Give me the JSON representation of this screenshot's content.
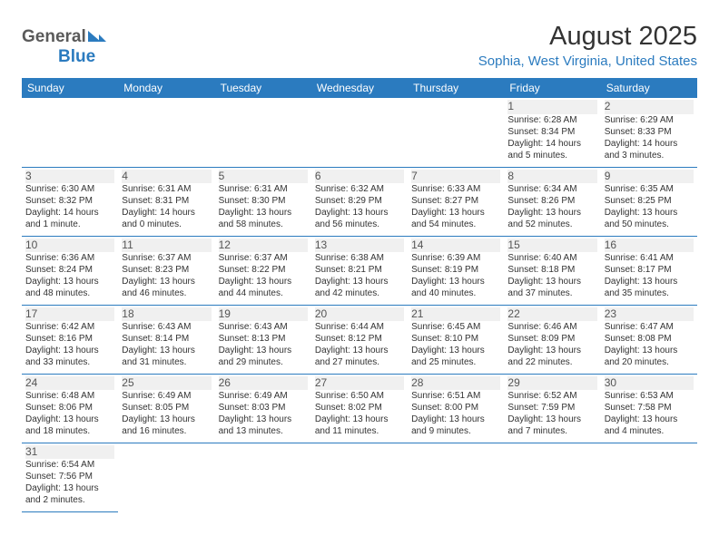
{
  "logo": {
    "part1": "General",
    "part2": "Blue"
  },
  "title": "August 2025",
  "location": "Sophia, West Virginia, United States",
  "colors": {
    "header_bg": "#2b7bbf",
    "header_text": "#ffffff",
    "rule": "#2b7bbf",
    "shade": "#f0f0f0",
    "text": "#333333",
    "logo_gray": "#5a5a5a",
    "logo_blue": "#2b7bbf"
  },
  "day_headers": [
    "Sunday",
    "Monday",
    "Tuesday",
    "Wednesday",
    "Thursday",
    "Friday",
    "Saturday"
  ],
  "weeks": [
    [
      null,
      null,
      null,
      null,
      null,
      {
        "n": "1",
        "sr": "Sunrise: 6:28 AM",
        "ss": "Sunset: 8:34 PM",
        "dl": "Daylight: 14 hours and 5 minutes."
      },
      {
        "n": "2",
        "sr": "Sunrise: 6:29 AM",
        "ss": "Sunset: 8:33 PM",
        "dl": "Daylight: 14 hours and 3 minutes."
      }
    ],
    [
      {
        "n": "3",
        "sr": "Sunrise: 6:30 AM",
        "ss": "Sunset: 8:32 PM",
        "dl": "Daylight: 14 hours and 1 minute."
      },
      {
        "n": "4",
        "sr": "Sunrise: 6:31 AM",
        "ss": "Sunset: 8:31 PM",
        "dl": "Daylight: 14 hours and 0 minutes."
      },
      {
        "n": "5",
        "sr": "Sunrise: 6:31 AM",
        "ss": "Sunset: 8:30 PM",
        "dl": "Daylight: 13 hours and 58 minutes."
      },
      {
        "n": "6",
        "sr": "Sunrise: 6:32 AM",
        "ss": "Sunset: 8:29 PM",
        "dl": "Daylight: 13 hours and 56 minutes."
      },
      {
        "n": "7",
        "sr": "Sunrise: 6:33 AM",
        "ss": "Sunset: 8:27 PM",
        "dl": "Daylight: 13 hours and 54 minutes."
      },
      {
        "n": "8",
        "sr": "Sunrise: 6:34 AM",
        "ss": "Sunset: 8:26 PM",
        "dl": "Daylight: 13 hours and 52 minutes."
      },
      {
        "n": "9",
        "sr": "Sunrise: 6:35 AM",
        "ss": "Sunset: 8:25 PM",
        "dl": "Daylight: 13 hours and 50 minutes."
      }
    ],
    [
      {
        "n": "10",
        "sr": "Sunrise: 6:36 AM",
        "ss": "Sunset: 8:24 PM",
        "dl": "Daylight: 13 hours and 48 minutes."
      },
      {
        "n": "11",
        "sr": "Sunrise: 6:37 AM",
        "ss": "Sunset: 8:23 PM",
        "dl": "Daylight: 13 hours and 46 minutes."
      },
      {
        "n": "12",
        "sr": "Sunrise: 6:37 AM",
        "ss": "Sunset: 8:22 PM",
        "dl": "Daylight: 13 hours and 44 minutes."
      },
      {
        "n": "13",
        "sr": "Sunrise: 6:38 AM",
        "ss": "Sunset: 8:21 PM",
        "dl": "Daylight: 13 hours and 42 minutes."
      },
      {
        "n": "14",
        "sr": "Sunrise: 6:39 AM",
        "ss": "Sunset: 8:19 PM",
        "dl": "Daylight: 13 hours and 40 minutes."
      },
      {
        "n": "15",
        "sr": "Sunrise: 6:40 AM",
        "ss": "Sunset: 8:18 PM",
        "dl": "Daylight: 13 hours and 37 minutes."
      },
      {
        "n": "16",
        "sr": "Sunrise: 6:41 AM",
        "ss": "Sunset: 8:17 PM",
        "dl": "Daylight: 13 hours and 35 minutes."
      }
    ],
    [
      {
        "n": "17",
        "sr": "Sunrise: 6:42 AM",
        "ss": "Sunset: 8:16 PM",
        "dl": "Daylight: 13 hours and 33 minutes."
      },
      {
        "n": "18",
        "sr": "Sunrise: 6:43 AM",
        "ss": "Sunset: 8:14 PM",
        "dl": "Daylight: 13 hours and 31 minutes."
      },
      {
        "n": "19",
        "sr": "Sunrise: 6:43 AM",
        "ss": "Sunset: 8:13 PM",
        "dl": "Daylight: 13 hours and 29 minutes."
      },
      {
        "n": "20",
        "sr": "Sunrise: 6:44 AM",
        "ss": "Sunset: 8:12 PM",
        "dl": "Daylight: 13 hours and 27 minutes."
      },
      {
        "n": "21",
        "sr": "Sunrise: 6:45 AM",
        "ss": "Sunset: 8:10 PM",
        "dl": "Daylight: 13 hours and 25 minutes."
      },
      {
        "n": "22",
        "sr": "Sunrise: 6:46 AM",
        "ss": "Sunset: 8:09 PM",
        "dl": "Daylight: 13 hours and 22 minutes."
      },
      {
        "n": "23",
        "sr": "Sunrise: 6:47 AM",
        "ss": "Sunset: 8:08 PM",
        "dl": "Daylight: 13 hours and 20 minutes."
      }
    ],
    [
      {
        "n": "24",
        "sr": "Sunrise: 6:48 AM",
        "ss": "Sunset: 8:06 PM",
        "dl": "Daylight: 13 hours and 18 minutes."
      },
      {
        "n": "25",
        "sr": "Sunrise: 6:49 AM",
        "ss": "Sunset: 8:05 PM",
        "dl": "Daylight: 13 hours and 16 minutes."
      },
      {
        "n": "26",
        "sr": "Sunrise: 6:49 AM",
        "ss": "Sunset: 8:03 PM",
        "dl": "Daylight: 13 hours and 13 minutes."
      },
      {
        "n": "27",
        "sr": "Sunrise: 6:50 AM",
        "ss": "Sunset: 8:02 PM",
        "dl": "Daylight: 13 hours and 11 minutes."
      },
      {
        "n": "28",
        "sr": "Sunrise: 6:51 AM",
        "ss": "Sunset: 8:00 PM",
        "dl": "Daylight: 13 hours and 9 minutes."
      },
      {
        "n": "29",
        "sr": "Sunrise: 6:52 AM",
        "ss": "Sunset: 7:59 PM",
        "dl": "Daylight: 13 hours and 7 minutes."
      },
      {
        "n": "30",
        "sr": "Sunrise: 6:53 AM",
        "ss": "Sunset: 7:58 PM",
        "dl": "Daylight: 13 hours and 4 minutes."
      }
    ],
    [
      {
        "n": "31",
        "sr": "Sunrise: 6:54 AM",
        "ss": "Sunset: 7:56 PM",
        "dl": "Daylight: 13 hours and 2 minutes."
      },
      null,
      null,
      null,
      null,
      null,
      null
    ]
  ]
}
